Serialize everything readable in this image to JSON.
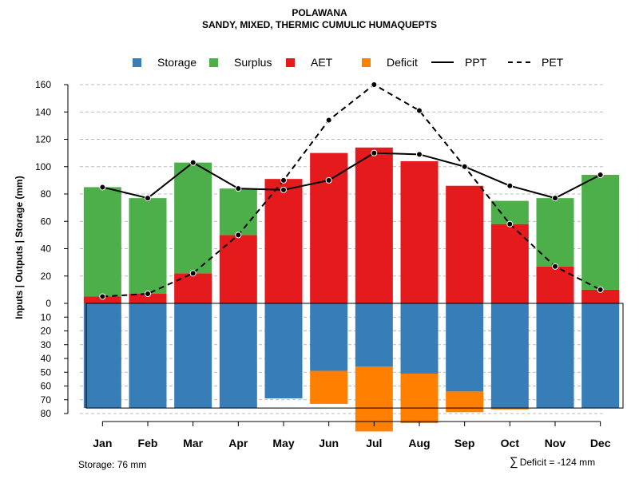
{
  "chart_data": {
    "type": "bar",
    "title": "POLAWANA",
    "subtitle": "SANDY, MIXED, THERMIC CUMULIC HUMAQUEPTS",
    "ylabel": "Inputs | Outputs | Storage    (mm)",
    "categories": [
      "Jan",
      "Feb",
      "Mar",
      "Apr",
      "May",
      "Jun",
      "Jul",
      "Aug",
      "Sep",
      "Oct",
      "Nov",
      "Dec"
    ],
    "upper_ylim": [
      0,
      160
    ],
    "upper_ticks": [
      "0",
      "20",
      "40",
      "60",
      "80",
      "100",
      "120",
      "140",
      "160"
    ],
    "lower_ylim": [
      0,
      80
    ],
    "lower_ticks": [
      "10",
      "20",
      "30",
      "40",
      "50",
      "60",
      "70",
      "80"
    ],
    "legend": [
      "Storage",
      "Surplus",
      "AET",
      "Deficit",
      "PPT",
      "PET"
    ],
    "series": [
      {
        "name": "AET",
        "color": "#E41A1C",
        "values": [
          5,
          7,
          22,
          50,
          91,
          110,
          114,
          104,
          86,
          58,
          27,
          10
        ]
      },
      {
        "name": "Surplus",
        "color": "#4DAF4A",
        "values": [
          80,
          70,
          81,
          34,
          0,
          0,
          0,
          0,
          0,
          17,
          50,
          84
        ]
      },
      {
        "name": "Storage",
        "color": "#377EB8",
        "values": [
          76,
          76,
          76,
          76,
          69,
          49,
          46,
          51,
          64,
          76,
          76,
          76
        ]
      },
      {
        "name": "Deficit",
        "color": "#FF7F00",
        "values": [
          0,
          0,
          0,
          0,
          0,
          24,
          47,
          36,
          15,
          1,
          0,
          0
        ]
      },
      {
        "name": "PPT",
        "color": "#000000",
        "values": [
          85,
          77,
          103,
          84,
          83,
          90,
          110,
          109,
          100,
          86,
          77,
          94
        ]
      },
      {
        "name": "PET",
        "color": "#000000",
        "values": [
          5,
          7,
          22,
          50,
          90,
          134,
          160,
          141,
          100,
          58,
          27,
          10
        ]
      }
    ],
    "storage_capacity": 76,
    "footer_storage": "Storage: 76 mm",
    "footer_deficit": "Deficit = -124 mm"
  }
}
